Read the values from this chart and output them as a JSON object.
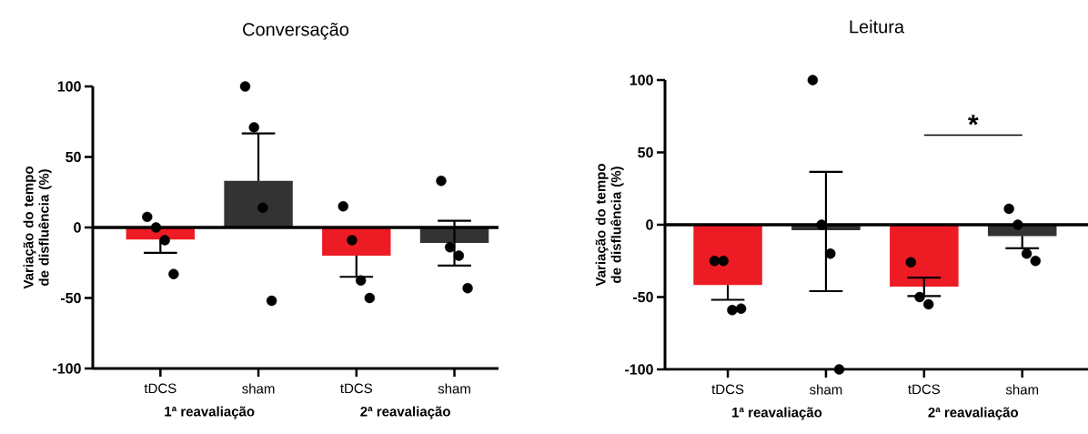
{
  "chart_data": [
    {
      "type": "bar",
      "title": "Conversação",
      "ylabel": "Variação do tempo de disfluência (%)",
      "categories": [
        "tDCS",
        "sham",
        "tDCS",
        "sham"
      ],
      "ylim": [
        -100,
        100
      ],
      "yticks": [
        -100,
        -50,
        0,
        50,
        100
      ],
      "series": [
        {
          "type": "bar",
          "values": [
            -8.5,
            33,
            -20,
            -11
          ],
          "colors": [
            "#ed1c24",
            "#333333",
            "#ed1c24",
            "#333333"
          ],
          "errors": [
            [
              -18,
              -8.5
            ],
            [
              33,
              66.7
            ],
            [
              -35,
              -20
            ],
            [
              -27,
              4.7
            ]
          ]
        },
        {
          "type": "scatter",
          "color": "#000000",
          "marker": "circle",
          "values": [
            7.5,
            100,
            15,
            33
          ]
        },
        {
          "type": "scatter",
          "color": "#000000",
          "marker": "circle",
          "values": [
            0,
            71,
            -9,
            -14
          ]
        },
        {
          "type": "scatter",
          "color": "#000000",
          "marker": "circle",
          "values": [
            -9,
            14,
            -37.6,
            -20
          ]
        },
        {
          "type": "scatter",
          "color": "#000000",
          "marker": "circle",
          "values": [
            -33,
            -52,
            -50,
            -43
          ]
        }
      ],
      "ref_lines": [
        {
          "axis": "y",
          "value": 0
        }
      ],
      "annotations": [
        "1ª reavaliação",
        "2ª reavaliação"
      ]
    },
    {
      "type": "bar",
      "title": "Leitura",
      "ylabel": "Variação do tempo de disfluência (%)",
      "categories": [
        "tDCS",
        "sham",
        "tDCS",
        "sham"
      ],
      "ylim": [
        -100,
        100
      ],
      "yticks": [
        -100,
        -50,
        0,
        50,
        100
      ],
      "series": [
        {
          "type": "bar",
          "values": [
            -41.7,
            -3.8,
            -42.8,
            -7.8
          ],
          "colors": [
            "#ed1c24",
            "#333333",
            "#ed1c24",
            "#333333"
          ],
          "errors": [
            [
              -51.9,
              -41.7
            ],
            [
              -45.9,
              36.6
            ],
            [
              -49.3,
              -36.6
            ],
            [
              -16.3,
              -7.8
            ]
          ]
        },
        {
          "type": "scatter",
          "color": "#000000",
          "marker": "circle",
          "values": [
            -25,
            100,
            -26,
            11
          ]
        },
        {
          "type": "scatter",
          "color": "#000000",
          "marker": "circle",
          "values": [
            -25,
            0,
            -50,
            0
          ]
        },
        {
          "type": "scatter",
          "color": "#000000",
          "marker": "circle",
          "values": [
            -59,
            -20,
            -55,
            -20
          ]
        },
        {
          "type": "scatter",
          "color": "#000000",
          "marker": "circle",
          "values": [
            -58,
            -100,
            null,
            -25
          ]
        }
      ],
      "ref_lines": [
        {
          "axis": "y",
          "value": 0
        }
      ],
      "annotations": [
        "1ª reavaliação",
        "2ª reavaliação",
        "*"
      ]
    }
  ]
}
